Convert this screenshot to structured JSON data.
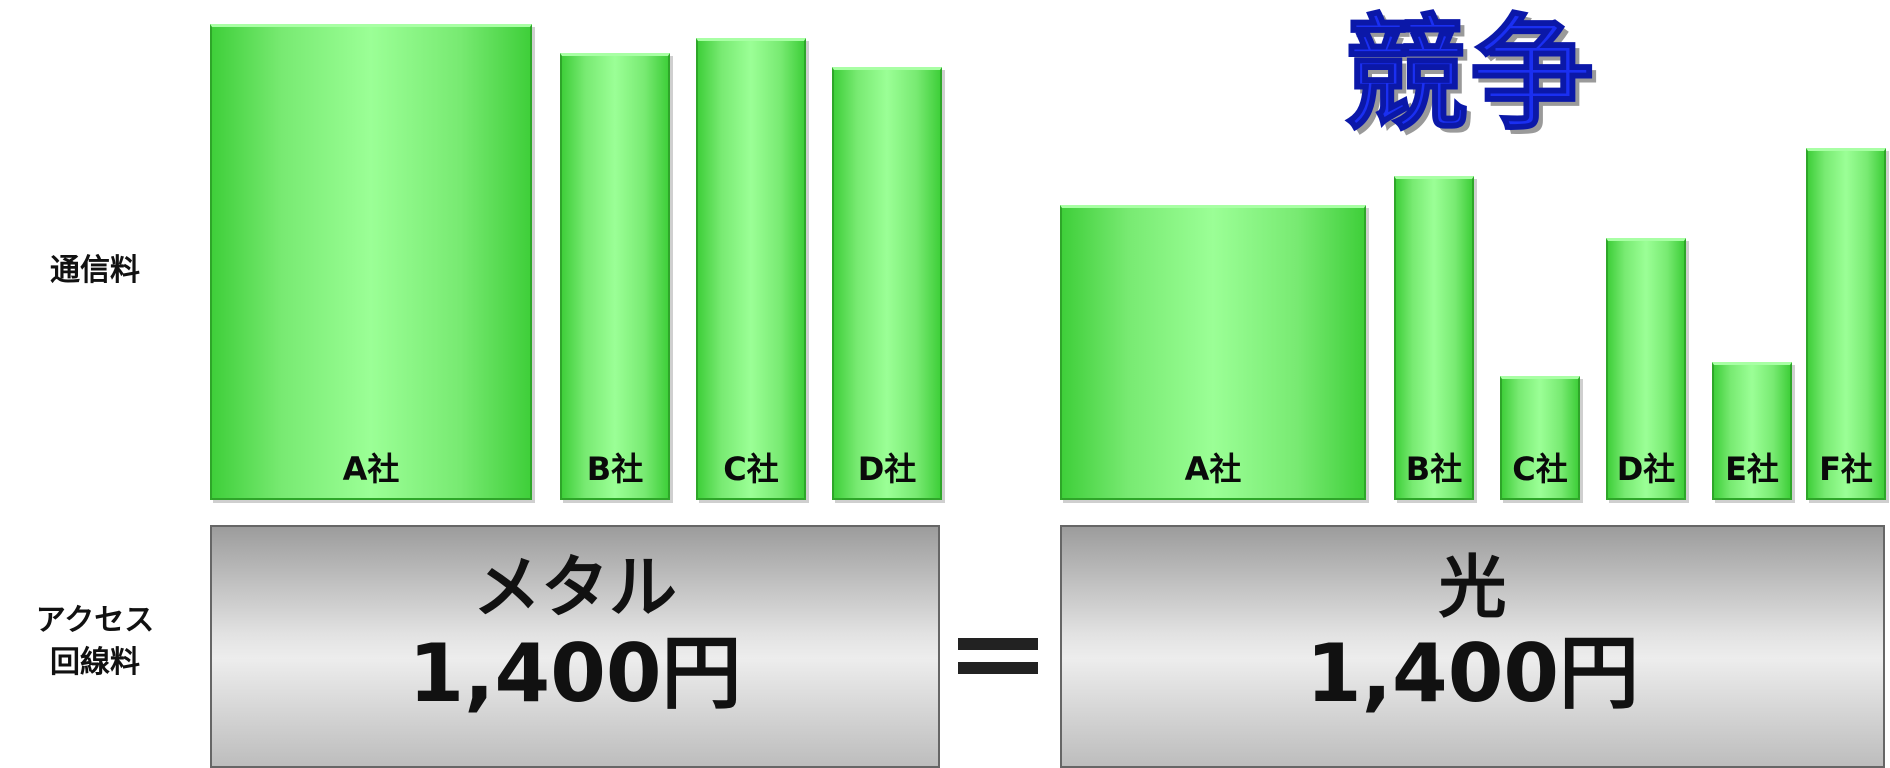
{
  "headline": "競争",
  "row_labels": {
    "usage_fee": "通信料",
    "access_fee_line1": "アクセス",
    "access_fee_line2": "回線料"
  },
  "left_group": {
    "bars": [
      {
        "label": "A社",
        "level": 1.0
      },
      {
        "label": "B社",
        "level": 0.94
      },
      {
        "label": "C社",
        "level": 0.97
      },
      {
        "label": "D社",
        "level": 0.91
      }
    ],
    "access": {
      "name": "メタル",
      "price": "1,400円"
    }
  },
  "equals_sign": "=",
  "right_group": {
    "bars": [
      {
        "label": "A社",
        "level": 0.62
      },
      {
        "label": "B社",
        "level": 0.68
      },
      {
        "label": "C社",
        "level": 0.26
      },
      {
        "label": "D社",
        "level": 0.55
      },
      {
        "label": "E社",
        "level": 0.29
      },
      {
        "label": "F社",
        "level": 0.74
      }
    ],
    "access": {
      "name": "光",
      "price": "1,400円"
    }
  },
  "colors": {
    "bar_green": "#78ea72",
    "headline_blue": "#1a2ff2",
    "access_gray": "#d8d8d8"
  }
}
